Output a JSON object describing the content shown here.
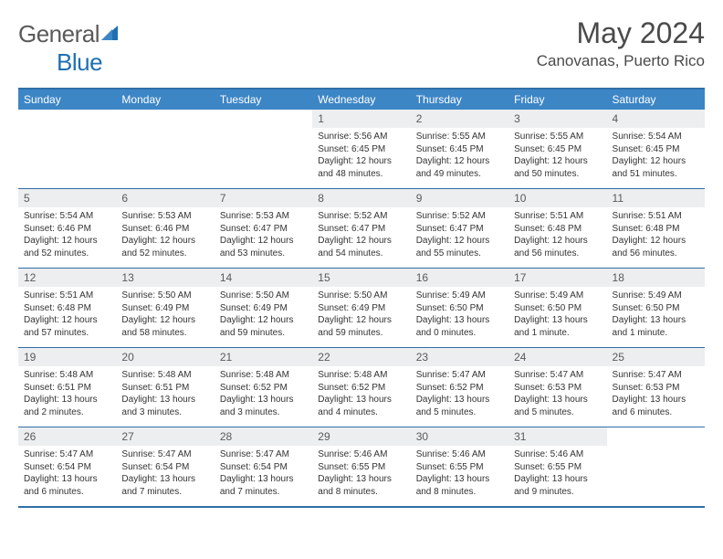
{
  "brand": {
    "part1": "General",
    "part2": "Blue"
  },
  "title": "May 2024",
  "location": "Canovanas, Puerto Rico",
  "colors": {
    "header_bg": "#3d86c6",
    "border": "#2f6fa8",
    "daynum_bg": "#eceeef",
    "text": "#333333",
    "brand_gray": "#5a5a5a",
    "brand_blue": "#1f6fb2"
  },
  "weekdays": [
    "Sunday",
    "Monday",
    "Tuesday",
    "Wednesday",
    "Thursday",
    "Friday",
    "Saturday"
  ],
  "weeks": [
    [
      null,
      null,
      null,
      {
        "d": "1",
        "sr": "Sunrise: 5:56 AM",
        "ss": "Sunset: 6:45 PM",
        "dl1": "Daylight: 12 hours",
        "dl2": "and 48 minutes."
      },
      {
        "d": "2",
        "sr": "Sunrise: 5:55 AM",
        "ss": "Sunset: 6:45 PM",
        "dl1": "Daylight: 12 hours",
        "dl2": "and 49 minutes."
      },
      {
        "d": "3",
        "sr": "Sunrise: 5:55 AM",
        "ss": "Sunset: 6:45 PM",
        "dl1": "Daylight: 12 hours",
        "dl2": "and 50 minutes."
      },
      {
        "d": "4",
        "sr": "Sunrise: 5:54 AM",
        "ss": "Sunset: 6:45 PM",
        "dl1": "Daylight: 12 hours",
        "dl2": "and 51 minutes."
      }
    ],
    [
      {
        "d": "5",
        "sr": "Sunrise: 5:54 AM",
        "ss": "Sunset: 6:46 PM",
        "dl1": "Daylight: 12 hours",
        "dl2": "and 52 minutes."
      },
      {
        "d": "6",
        "sr": "Sunrise: 5:53 AM",
        "ss": "Sunset: 6:46 PM",
        "dl1": "Daylight: 12 hours",
        "dl2": "and 52 minutes."
      },
      {
        "d": "7",
        "sr": "Sunrise: 5:53 AM",
        "ss": "Sunset: 6:47 PM",
        "dl1": "Daylight: 12 hours",
        "dl2": "and 53 minutes."
      },
      {
        "d": "8",
        "sr": "Sunrise: 5:52 AM",
        "ss": "Sunset: 6:47 PM",
        "dl1": "Daylight: 12 hours",
        "dl2": "and 54 minutes."
      },
      {
        "d": "9",
        "sr": "Sunrise: 5:52 AM",
        "ss": "Sunset: 6:47 PM",
        "dl1": "Daylight: 12 hours",
        "dl2": "and 55 minutes."
      },
      {
        "d": "10",
        "sr": "Sunrise: 5:51 AM",
        "ss": "Sunset: 6:48 PM",
        "dl1": "Daylight: 12 hours",
        "dl2": "and 56 minutes."
      },
      {
        "d": "11",
        "sr": "Sunrise: 5:51 AM",
        "ss": "Sunset: 6:48 PM",
        "dl1": "Daylight: 12 hours",
        "dl2": "and 56 minutes."
      }
    ],
    [
      {
        "d": "12",
        "sr": "Sunrise: 5:51 AM",
        "ss": "Sunset: 6:48 PM",
        "dl1": "Daylight: 12 hours",
        "dl2": "and 57 minutes."
      },
      {
        "d": "13",
        "sr": "Sunrise: 5:50 AM",
        "ss": "Sunset: 6:49 PM",
        "dl1": "Daylight: 12 hours",
        "dl2": "and 58 minutes."
      },
      {
        "d": "14",
        "sr": "Sunrise: 5:50 AM",
        "ss": "Sunset: 6:49 PM",
        "dl1": "Daylight: 12 hours",
        "dl2": "and 59 minutes."
      },
      {
        "d": "15",
        "sr": "Sunrise: 5:50 AM",
        "ss": "Sunset: 6:49 PM",
        "dl1": "Daylight: 12 hours",
        "dl2": "and 59 minutes."
      },
      {
        "d": "16",
        "sr": "Sunrise: 5:49 AM",
        "ss": "Sunset: 6:50 PM",
        "dl1": "Daylight: 13 hours",
        "dl2": "and 0 minutes."
      },
      {
        "d": "17",
        "sr": "Sunrise: 5:49 AM",
        "ss": "Sunset: 6:50 PM",
        "dl1": "Daylight: 13 hours",
        "dl2": "and 1 minute."
      },
      {
        "d": "18",
        "sr": "Sunrise: 5:49 AM",
        "ss": "Sunset: 6:50 PM",
        "dl1": "Daylight: 13 hours",
        "dl2": "and 1 minute."
      }
    ],
    [
      {
        "d": "19",
        "sr": "Sunrise: 5:48 AM",
        "ss": "Sunset: 6:51 PM",
        "dl1": "Daylight: 13 hours",
        "dl2": "and 2 minutes."
      },
      {
        "d": "20",
        "sr": "Sunrise: 5:48 AM",
        "ss": "Sunset: 6:51 PM",
        "dl1": "Daylight: 13 hours",
        "dl2": "and 3 minutes."
      },
      {
        "d": "21",
        "sr": "Sunrise: 5:48 AM",
        "ss": "Sunset: 6:52 PM",
        "dl1": "Daylight: 13 hours",
        "dl2": "and 3 minutes."
      },
      {
        "d": "22",
        "sr": "Sunrise: 5:48 AM",
        "ss": "Sunset: 6:52 PM",
        "dl1": "Daylight: 13 hours",
        "dl2": "and 4 minutes."
      },
      {
        "d": "23",
        "sr": "Sunrise: 5:47 AM",
        "ss": "Sunset: 6:52 PM",
        "dl1": "Daylight: 13 hours",
        "dl2": "and 5 minutes."
      },
      {
        "d": "24",
        "sr": "Sunrise: 5:47 AM",
        "ss": "Sunset: 6:53 PM",
        "dl1": "Daylight: 13 hours",
        "dl2": "and 5 minutes."
      },
      {
        "d": "25",
        "sr": "Sunrise: 5:47 AM",
        "ss": "Sunset: 6:53 PM",
        "dl1": "Daylight: 13 hours",
        "dl2": "and 6 minutes."
      }
    ],
    [
      {
        "d": "26",
        "sr": "Sunrise: 5:47 AM",
        "ss": "Sunset: 6:54 PM",
        "dl1": "Daylight: 13 hours",
        "dl2": "and 6 minutes."
      },
      {
        "d": "27",
        "sr": "Sunrise: 5:47 AM",
        "ss": "Sunset: 6:54 PM",
        "dl1": "Daylight: 13 hours",
        "dl2": "and 7 minutes."
      },
      {
        "d": "28",
        "sr": "Sunrise: 5:47 AM",
        "ss": "Sunset: 6:54 PM",
        "dl1": "Daylight: 13 hours",
        "dl2": "and 7 minutes."
      },
      {
        "d": "29",
        "sr": "Sunrise: 5:46 AM",
        "ss": "Sunset: 6:55 PM",
        "dl1": "Daylight: 13 hours",
        "dl2": "and 8 minutes."
      },
      {
        "d": "30",
        "sr": "Sunrise: 5:46 AM",
        "ss": "Sunset: 6:55 PM",
        "dl1": "Daylight: 13 hours",
        "dl2": "and 8 minutes."
      },
      {
        "d": "31",
        "sr": "Sunrise: 5:46 AM",
        "ss": "Sunset: 6:55 PM",
        "dl1": "Daylight: 13 hours",
        "dl2": "and 9 minutes."
      },
      null
    ]
  ]
}
